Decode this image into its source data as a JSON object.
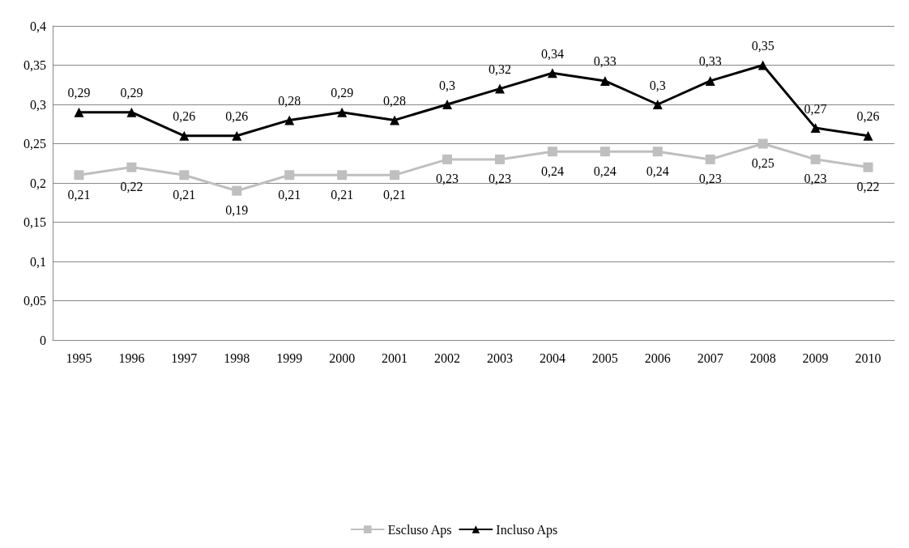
{
  "chart_data": {
    "type": "line",
    "categories": [
      "1995",
      "1996",
      "1997",
      "1998",
      "1999",
      "2000",
      "2001",
      "2002",
      "2003",
      "2004",
      "2005",
      "2006",
      "2007",
      "2008",
      "2009",
      "2010"
    ],
    "series": [
      {
        "name": "Escluso Aps",
        "color": "#bfbfbf",
        "marker": "square",
        "values": [
          0.21,
          0.22,
          0.21,
          0.19,
          0.21,
          0.21,
          0.21,
          0.23,
          0.23,
          0.24,
          0.24,
          0.24,
          0.23,
          0.25,
          0.23,
          0.22
        ],
        "value_labels": [
          "0,21",
          "0,22",
          "0,21",
          "0,19",
          "0,21",
          "0,21",
          "0,21",
          "0,23",
          "0,23",
          "0,24",
          "0,24",
          "0,24",
          "0,23",
          "0,25",
          "0,23",
          "0,22"
        ]
      },
      {
        "name": "Incluso Aps",
        "color": "#000000",
        "marker": "triangle",
        "values": [
          0.29,
          0.29,
          0.26,
          0.26,
          0.28,
          0.29,
          0.28,
          0.3,
          0.32,
          0.34,
          0.33,
          0.3,
          0.33,
          0.35,
          0.27,
          0.26
        ],
        "value_labels": [
          "0,29",
          "0,29",
          "0,26",
          "0,26",
          "0,28",
          "0,29",
          "0,28",
          "0,3",
          "0,32",
          "0,34",
          "0,33",
          "0,3",
          "0,33",
          "0,35",
          "0,27",
          "0,26"
        ]
      }
    ],
    "ylim": [
      0,
      0.4
    ],
    "yticks": [
      0,
      {
        "value": 0.05,
        "label": "0,05"
      },
      {
        "value": 0.1,
        "label": "0,1"
      },
      {
        "value": 0.15,
        "label": "0,15"
      },
      {
        "value": 0.2,
        "label": "0,2"
      },
      {
        "value": 0.25,
        "label": "0,25"
      },
      {
        "value": 0.3,
        "label": "0,3"
      },
      {
        "value": 0.35,
        "label": "0,35"
      },
      {
        "value": 0.4,
        "label": "0,4"
      }
    ],
    "grid": "y",
    "legend": "bottom",
    "line_style": "solid"
  }
}
